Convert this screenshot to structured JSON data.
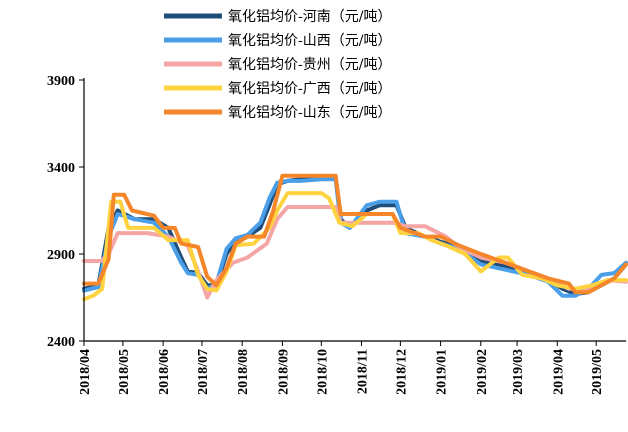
{
  "chart_data": {
    "type": "line",
    "title": "",
    "xlabel": "",
    "ylabel": "",
    "ylim": [
      2400,
      3900
    ],
    "yticks": [
      2400,
      2900,
      3400,
      3900
    ],
    "xticks": [
      "2018/04",
      "2018/05",
      "2018/06",
      "2018/07",
      "2018/08",
      "2018/09",
      "2018/10",
      "2018/11",
      "2018/12",
      "2019/01",
      "2019/02",
      "2019/03",
      "2019/04",
      "2019/05"
    ],
    "xrange": [
      "2018-04-01",
      "2019-05-24"
    ],
    "grid": false,
    "legend_position": "top-center",
    "series": [
      {
        "name": "氧化铝均价-河南（元/吨）",
        "color": "#1F4E79",
        "points": [
          [
            "2018-04-01",
            2700
          ],
          [
            "2018-04-12",
            2720
          ],
          [
            "2018-04-20",
            3050
          ],
          [
            "2018-04-27",
            3150
          ],
          [
            "2018-05-10",
            3100
          ],
          [
            "2018-05-25",
            3100
          ],
          [
            "2018-06-05",
            3050
          ],
          [
            "2018-06-15",
            2880
          ],
          [
            "2018-06-20",
            2800
          ],
          [
            "2018-06-28",
            2790
          ],
          [
            "2018-07-05",
            2720
          ],
          [
            "2018-07-12",
            2720
          ],
          [
            "2018-07-20",
            2900
          ],
          [
            "2018-07-27",
            2980
          ],
          [
            "2018-08-05",
            3000
          ],
          [
            "2018-08-15",
            3050
          ],
          [
            "2018-08-22",
            3180
          ],
          [
            "2018-08-28",
            3300
          ],
          [
            "2018-09-05",
            3320
          ],
          [
            "2018-09-15",
            3330
          ],
          [
            "2018-10-01",
            3340
          ],
          [
            "2018-10-12",
            3340
          ],
          [
            "2018-10-16",
            3100
          ],
          [
            "2018-10-23",
            3050
          ],
          [
            "2018-11-05",
            3150
          ],
          [
            "2018-11-15",
            3180
          ],
          [
            "2018-11-28",
            3180
          ],
          [
            "2018-12-05",
            3050
          ],
          [
            "2018-12-20",
            3000
          ],
          [
            "2019-01-01",
            2970
          ],
          [
            "2019-01-15",
            2940
          ],
          [
            "2019-02-01",
            2860
          ],
          [
            "2019-02-20",
            2830
          ],
          [
            "2019-03-10",
            2790
          ],
          [
            "2019-03-25",
            2750
          ],
          [
            "2019-04-05",
            2700
          ],
          [
            "2019-04-15",
            2670
          ],
          [
            "2019-04-25",
            2680
          ],
          [
            "2019-05-05",
            2720
          ],
          [
            "2019-05-15",
            2760
          ],
          [
            "2019-05-24",
            2840
          ]
        ]
      },
      {
        "name": "氧化铝均价-山西（元/吨）",
        "color": "#4A9FE8",
        "points": [
          [
            "2018-04-01",
            2690
          ],
          [
            "2018-04-12",
            2710
          ],
          [
            "2018-04-20",
            3000
          ],
          [
            "2018-04-27",
            3130
          ],
          [
            "2018-05-10",
            3100
          ],
          [
            "2018-05-25",
            3080
          ],
          [
            "2018-06-05",
            3000
          ],
          [
            "2018-06-15",
            2850
          ],
          [
            "2018-06-20",
            2790
          ],
          [
            "2018-06-28",
            2780
          ],
          [
            "2018-07-05",
            2700
          ],
          [
            "2018-07-12",
            2730
          ],
          [
            "2018-07-20",
            2930
          ],
          [
            "2018-07-27",
            2990
          ],
          [
            "2018-08-05",
            3010
          ],
          [
            "2018-08-15",
            3080
          ],
          [
            "2018-08-22",
            3220
          ],
          [
            "2018-08-28",
            3310
          ],
          [
            "2018-09-05",
            3320
          ],
          [
            "2018-09-15",
            3320
          ],
          [
            "2018-10-01",
            3330
          ],
          [
            "2018-10-12",
            3330
          ],
          [
            "2018-10-16",
            3080
          ],
          [
            "2018-10-23",
            3050
          ],
          [
            "2018-11-05",
            3180
          ],
          [
            "2018-11-15",
            3200
          ],
          [
            "2018-11-28",
            3200
          ],
          [
            "2018-12-05",
            3020
          ],
          [
            "2018-12-20",
            3000
          ],
          [
            "2019-01-01",
            2960
          ],
          [
            "2019-01-15",
            2930
          ],
          [
            "2019-02-01",
            2840
          ],
          [
            "2019-02-20",
            2810
          ],
          [
            "2019-03-10",
            2780
          ],
          [
            "2019-03-25",
            2740
          ],
          [
            "2019-04-05",
            2660
          ],
          [
            "2019-04-15",
            2660
          ],
          [
            "2019-04-25",
            2700
          ],
          [
            "2019-05-05",
            2780
          ],
          [
            "2019-05-15",
            2790
          ],
          [
            "2019-05-24",
            2850
          ]
        ]
      },
      {
        "name": "氧化铝均价-贵州（元/吨）",
        "color": "#F4A6A6",
        "points": [
          [
            "2018-04-01",
            2860
          ],
          [
            "2018-04-14",
            2860
          ],
          [
            "2018-04-20",
            2900
          ],
          [
            "2018-04-27",
            3020
          ],
          [
            "2018-05-20",
            3020
          ],
          [
            "2018-06-05",
            3000
          ],
          [
            "2018-06-20",
            2950
          ],
          [
            "2018-06-28",
            2800
          ],
          [
            "2018-07-05",
            2650
          ],
          [
            "2018-07-12",
            2750
          ],
          [
            "2018-07-25",
            2850
          ],
          [
            "2018-08-05",
            2880
          ],
          [
            "2018-08-20",
            2960
          ],
          [
            "2018-08-28",
            3100
          ],
          [
            "2018-09-05",
            3170
          ],
          [
            "2018-10-01",
            3170
          ],
          [
            "2018-10-12",
            3170
          ],
          [
            "2018-10-16",
            3080
          ],
          [
            "2018-11-05",
            3080
          ],
          [
            "2018-11-25",
            3080
          ],
          [
            "2018-12-05",
            3060
          ],
          [
            "2018-12-20",
            3060
          ],
          [
            "2019-01-05",
            3000
          ],
          [
            "2019-01-15",
            2940
          ],
          [
            "2019-02-01",
            2880
          ],
          [
            "2019-02-20",
            2850
          ],
          [
            "2019-03-10",
            2800
          ],
          [
            "2019-03-25",
            2760
          ],
          [
            "2019-04-10",
            2700
          ],
          [
            "2019-04-25",
            2700
          ],
          [
            "2019-05-10",
            2750
          ],
          [
            "2019-05-24",
            2740
          ]
        ]
      },
      {
        "name": "氧化铝均价-广西（元/吨）",
        "color": "#FFD23F",
        "points": [
          [
            "2018-04-01",
            2640
          ],
          [
            "2018-04-08",
            2660
          ],
          [
            "2018-04-15",
            2700
          ],
          [
            "2018-04-22",
            3200
          ],
          [
            "2018-04-29",
            3200
          ],
          [
            "2018-05-05",
            3050
          ],
          [
            "2018-05-25",
            3050
          ],
          [
            "2018-06-05",
            2980
          ],
          [
            "2018-06-20",
            2980
          ],
          [
            "2018-06-28",
            2780
          ],
          [
            "2018-07-05",
            2700
          ],
          [
            "2018-07-12",
            2690
          ],
          [
            "2018-07-20",
            2800
          ],
          [
            "2018-07-27",
            2950
          ],
          [
            "2018-08-10",
            2960
          ],
          [
            "2018-08-22",
            3050
          ],
          [
            "2018-08-28",
            3150
          ],
          [
            "2018-09-05",
            3250
          ],
          [
            "2018-10-01",
            3250
          ],
          [
            "2018-10-07",
            3220
          ],
          [
            "2018-10-15",
            3080
          ],
          [
            "2018-10-25",
            3060
          ],
          [
            "2018-11-05",
            3130
          ],
          [
            "2018-11-25",
            3130
          ],
          [
            "2018-12-01",
            3020
          ],
          [
            "2018-12-15",
            3020
          ],
          [
            "2018-12-25",
            2980
          ],
          [
            "2019-01-05",
            2950
          ],
          [
            "2019-01-20",
            2900
          ],
          [
            "2019-02-01",
            2800
          ],
          [
            "2019-02-15",
            2880
          ],
          [
            "2019-02-22",
            2880
          ],
          [
            "2019-03-05",
            2780
          ],
          [
            "2019-03-20",
            2760
          ],
          [
            "2019-04-01",
            2720
          ],
          [
            "2019-04-15",
            2700
          ],
          [
            "2019-04-28",
            2720
          ],
          [
            "2019-05-10",
            2750
          ],
          [
            "2019-05-24",
            2750
          ]
        ]
      },
      {
        "name": "氧化铝均价-山东（元/吨）",
        "color": "#F5862A",
        "points": [
          [
            "2018-04-01",
            2730
          ],
          [
            "2018-04-12",
            2730
          ],
          [
            "2018-04-20",
            2870
          ],
          [
            "2018-04-24",
            3240
          ],
          [
            "2018-05-02",
            3240
          ],
          [
            "2018-05-08",
            3150
          ],
          [
            "2018-05-25",
            3120
          ],
          [
            "2018-06-01",
            3050
          ],
          [
            "2018-06-10",
            3050
          ],
          [
            "2018-06-15",
            2960
          ],
          [
            "2018-06-28",
            2940
          ],
          [
            "2018-07-05",
            2770
          ],
          [
            "2018-07-12",
            2720
          ],
          [
            "2018-07-20",
            2820
          ],
          [
            "2018-07-27",
            2960
          ],
          [
            "2018-08-05",
            3000
          ],
          [
            "2018-08-18",
            3000
          ],
          [
            "2018-08-25",
            3150
          ],
          [
            "2018-09-01",
            3350
          ],
          [
            "2018-10-01",
            3350
          ],
          [
            "2018-10-12",
            3350
          ],
          [
            "2018-10-16",
            3130
          ],
          [
            "2018-11-05",
            3130
          ],
          [
            "2018-11-25",
            3130
          ],
          [
            "2018-12-01",
            3050
          ],
          [
            "2018-12-20",
            3000
          ],
          [
            "2019-01-01",
            3000
          ],
          [
            "2019-01-15",
            2950
          ],
          [
            "2019-02-01",
            2900
          ],
          [
            "2019-02-20",
            2850
          ],
          [
            "2019-03-10",
            2800
          ],
          [
            "2019-03-25",
            2760
          ],
          [
            "2019-04-10",
            2730
          ],
          [
            "2019-04-15",
            2680
          ],
          [
            "2019-04-25",
            2680
          ],
          [
            "2019-05-05",
            2720
          ],
          [
            "2019-05-15",
            2760
          ],
          [
            "2019-05-24",
            2840
          ]
        ]
      }
    ]
  }
}
